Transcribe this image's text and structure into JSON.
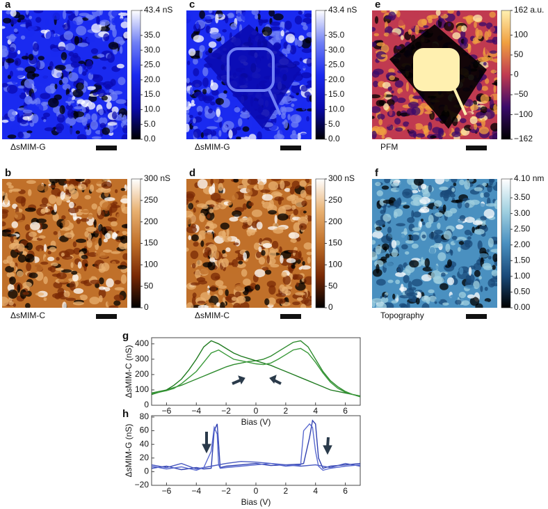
{
  "chart_data": [
    {
      "type": "image",
      "panel": "a",
      "caption": "ΔsMIM-G",
      "colormap": [
        "#000000",
        "#0a0ab0",
        "#1a2af0",
        "#7080f5",
        "#ffffff"
      ],
      "clim": [
        0,
        43.4
      ],
      "cticks": [
        {
          "value": 43.4,
          "label": "43.4 nS"
        },
        {
          "value": 35,
          "label": "35.0"
        },
        {
          "value": 30,
          "label": "30.0"
        },
        {
          "value": 25,
          "label": "25.0"
        },
        {
          "value": 20,
          "label": "20.0"
        },
        {
          "value": 15,
          "label": "15.0"
        },
        {
          "value": 10,
          "label": "10.0"
        },
        {
          "value": 5,
          "label": "5.0"
        },
        {
          "value": 0,
          "label": "0.0"
        }
      ]
    },
    {
      "type": "image",
      "panel": "c",
      "caption": "ΔsMIM-G",
      "colormap": [
        "#000000",
        "#0a0ab0",
        "#1a2af0",
        "#7080f5",
        "#ffffff"
      ],
      "clim": [
        0,
        43.4
      ],
      "cticks": [
        {
          "value": 43.4,
          "label": "43.4 nS"
        },
        {
          "value": 35,
          "label": "35.0"
        },
        {
          "value": 30,
          "label": "30.0"
        },
        {
          "value": 25,
          "label": "25.0"
        },
        {
          "value": 20,
          "label": "20.0"
        },
        {
          "value": 15,
          "label": "15.0"
        },
        {
          "value": 10,
          "label": "10.0"
        },
        {
          "value": 5,
          "label": "5.0"
        },
        {
          "value": 0,
          "label": "0.0"
        }
      ]
    },
    {
      "type": "image",
      "panel": "e",
      "caption": "PFM",
      "colormap": [
        "#000000",
        "#3a0a6a",
        "#c03a50",
        "#f0a040",
        "#fff0b0"
      ],
      "clim": [
        -162,
        162
      ],
      "cticks": [
        {
          "value": 162,
          "label": "162 a.u."
        },
        100,
        50,
        0,
        {
          "value": -50,
          "label": "−50"
        },
        {
          "value": -100,
          "label": "−100"
        },
        {
          "value": -162,
          "label": "−162"
        }
      ]
    },
    {
      "type": "image",
      "panel": "b",
      "caption": "ΔsMIM-C",
      "colormap": [
        "#000000",
        "#7a2a05",
        "#c0702a",
        "#e8b070",
        "#ffffff"
      ],
      "clim": [
        0,
        300
      ],
      "cticks": [
        {
          "value": 300,
          "label": "300 nS"
        },
        250,
        200,
        150,
        100,
        50,
        0
      ]
    },
    {
      "type": "image",
      "panel": "d",
      "caption": "ΔsMIM-C",
      "colormap": [
        "#000000",
        "#7a2a05",
        "#c0702a",
        "#e8b070",
        "#ffffff"
      ],
      "clim": [
        0,
        300
      ],
      "cticks": [
        {
          "value": 300,
          "label": "300 nS"
        },
        250,
        200,
        150,
        100,
        50,
        0
      ]
    },
    {
      "type": "image",
      "panel": "f",
      "caption": "Topography",
      "colormap": [
        "#000000",
        "#1a4a7a",
        "#4a90c0",
        "#a0d0e0",
        "#ffffff"
      ],
      "clim": [
        0,
        4.1
      ],
      "cticks": [
        {
          "value": 4.1,
          "label": "4.10 nm"
        },
        {
          "value": 3.5,
          "label": "3.50"
        },
        {
          "value": 3,
          "label": "3.00"
        },
        {
          "value": 2.5,
          "label": "2.50"
        },
        {
          "value": 2,
          "label": "2.00"
        },
        {
          "value": 1.5,
          "label": "1.50"
        },
        {
          "value": 1,
          "label": "1.00"
        },
        {
          "value": 0.5,
          "label": "0.50"
        },
        {
          "value": 0,
          "label": "0.00"
        }
      ]
    },
    {
      "type": "line",
      "panel": "g",
      "xlabel": "Bias (V)",
      "ylabel": "ΔsMIM-C (nS)",
      "xlim": [
        -7,
        7
      ],
      "ylim": [
        0,
        440
      ],
      "xticks": [
        {
          "value": -6,
          "label": "−6"
        },
        {
          "value": -4,
          "label": "−4"
        },
        {
          "value": -2,
          "label": "−2"
        },
        0,
        2,
        4,
        6
      ],
      "yticks": [
        0,
        100,
        200,
        300,
        400
      ],
      "series": [
        {
          "color": "#2e8b2e",
          "x": [
            -7,
            -6.5,
            -6,
            -5.5,
            -5,
            -4.5,
            -4,
            -3.5,
            -3,
            -2.5,
            -2,
            -1.5,
            -1,
            -0.5,
            0,
            0.5,
            1,
            1.5,
            2,
            2.5,
            3,
            3.5,
            4,
            4.5,
            5,
            5.5,
            6,
            6.5,
            7
          ],
          "values": [
            80,
            90,
            100,
            115,
            130,
            150,
            170,
            190,
            210,
            230,
            250,
            265,
            275,
            285,
            290,
            300,
            320,
            350,
            380,
            410,
            420,
            380,
            300,
            220,
            160,
            120,
            90,
            70,
            60
          ]
        },
        {
          "color": "#1f7a1f",
          "x": [
            -7,
            -6.5,
            -6,
            -5.5,
            -5,
            -4.5,
            -4,
            -3.5,
            -3,
            -2.5,
            -2,
            -1.5,
            -1,
            -0.5,
            0,
            0.5,
            1,
            1.5,
            2,
            2.5,
            3,
            3.5,
            4,
            4.5,
            5,
            5.5,
            6,
            6.5,
            7
          ],
          "values": [
            70,
            85,
            100,
            130,
            170,
            230,
            300,
            380,
            420,
            400,
            370,
            340,
            320,
            305,
            290,
            275,
            260,
            240,
            220,
            200,
            180,
            160,
            140,
            120,
            100,
            90,
            80,
            70,
            60
          ]
        },
        {
          "color": "#3a9a3a",
          "x": [
            -7,
            -6.5,
            -6,
            -5.5,
            -5,
            -4.5,
            -4,
            -3.5,
            -3,
            -2.5,
            -2,
            -1.5,
            -1,
            -0.5,
            0,
            0.5,
            1,
            1.5,
            2,
            2.5,
            3,
            3.5,
            4,
            4.5,
            5,
            5.5,
            6,
            6.5,
            7
          ],
          "values": [
            75,
            85,
            95,
            110,
            140,
            180,
            220,
            280,
            340,
            360,
            330,
            300,
            290,
            280,
            270,
            265,
            275,
            300,
            330,
            360,
            370,
            340,
            280,
            210,
            150,
            110,
            85,
            70,
            55
          ]
        }
      ]
    },
    {
      "type": "line",
      "panel": "h",
      "xlabel": "Bias (V)",
      "ylabel": "ΔsMIM-G (nS)",
      "xlim": [
        -7,
        7
      ],
      "ylim": [
        -20,
        82
      ],
      "xticks": [
        {
          "value": -6,
          "label": "−6"
        },
        {
          "value": -4,
          "label": "−4"
        },
        {
          "value": -2,
          "label": "−2"
        },
        0,
        2,
        4,
        6
      ],
      "yticks": [
        {
          "value": -20,
          "label": "−20"
        },
        0,
        20,
        40,
        60,
        80
      ],
      "series": [
        {
          "color": "#3040b0",
          "x": [
            -7,
            -6,
            -5,
            -4,
            -3.5,
            -3,
            -2.8,
            -2.6,
            -2.5,
            -2.4,
            -2,
            -1,
            0,
            1,
            2,
            3,
            3.2,
            3.6,
            3.8,
            4,
            4.2,
            4.5,
            5,
            6,
            7
          ],
          "values": [
            5,
            8,
            3,
            6,
            4,
            5,
            60,
            70,
            40,
            6,
            8,
            10,
            12,
            9,
            10,
            11,
            12,
            50,
            75,
            70,
            20,
            5,
            8,
            10,
            12
          ]
        },
        {
          "color": "#4a5ac0",
          "x": [
            -7,
            -6,
            -5,
            -4,
            -3,
            -2,
            -1,
            0,
            1,
            2,
            3,
            4,
            5,
            6,
            7
          ],
          "values": [
            10,
            6,
            12,
            4,
            8,
            12,
            15,
            14,
            12,
            10,
            8,
            10,
            6,
            12,
            8
          ]
        },
        {
          "color": "#5a6ad0",
          "x": [
            -7,
            -6,
            -5,
            -4,
            -3.5,
            -3,
            -2.8,
            -2.6,
            -2.5,
            -2.4,
            -2,
            -1,
            0,
            1,
            2,
            3,
            3.2,
            3.6,
            3.8,
            4,
            4.2,
            4.5,
            5,
            6,
            7
          ],
          "values": [
            8,
            4,
            7,
            2,
            6,
            30,
            65,
            55,
            10,
            5,
            6,
            8,
            10,
            12,
            8,
            10,
            60,
            70,
            65,
            30,
            8,
            2,
            5,
            8,
            10
          ]
        }
      ]
    }
  ]
}
